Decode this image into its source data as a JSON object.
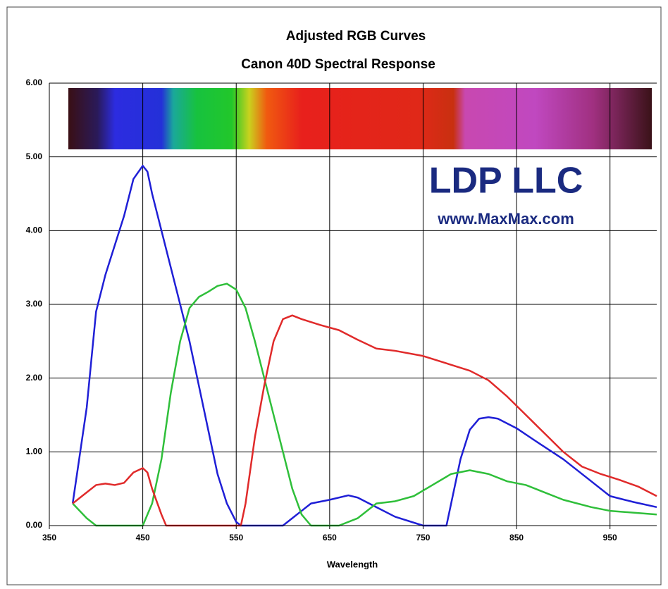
{
  "chart_data": {
    "type": "line",
    "title": "Adjusted RGB Curves",
    "subtitle": "Canon 40D Spectral Response",
    "x_label": "Wavelength",
    "annotations": [
      "LDP LLC",
      "www.MaxMax.com"
    ],
    "xlim": [
      350,
      1000
    ],
    "xticks": [
      350,
      450,
      550,
      650,
      750,
      850,
      950
    ],
    "ylim": [
      0,
      6
    ],
    "yticks": [
      {
        "value": 0,
        "label": "0.00"
      },
      {
        "value": 1,
        "label": "1.00"
      },
      {
        "value": 2,
        "label": "2.00"
      },
      {
        "value": 3,
        "label": "3.00"
      },
      {
        "value": 4,
        "label": "4.00"
      },
      {
        "value": 5,
        "label": "5.00"
      },
      {
        "value": 6,
        "label": "6.00"
      }
    ],
    "grid": true,
    "series": [
      {
        "color": "#1f1fd6",
        "x": [
          375,
          390,
          400,
          410,
          420,
          430,
          440,
          450,
          455,
          460,
          470,
          480,
          490,
          500,
          510,
          520,
          530,
          540,
          550,
          555,
          600,
          610,
          620,
          630,
          650,
          670,
          680,
          700,
          720,
          750,
          775,
          790,
          800,
          810,
          820,
          830,
          850,
          870,
          900,
          930,
          950,
          975,
          1000
        ],
        "values": [
          0.3,
          1.6,
          2.9,
          3.4,
          3.8,
          4.2,
          4.7,
          4.88,
          4.8,
          4.5,
          4.0,
          3.5,
          3.0,
          2.5,
          1.9,
          1.3,
          0.7,
          0.3,
          0.05,
          0,
          0,
          0.1,
          0.2,
          0.3,
          0.35,
          0.41,
          0.38,
          0.25,
          0.12,
          0,
          0,
          0.9,
          1.3,
          1.45,
          1.47,
          1.45,
          1.32,
          1.15,
          0.9,
          0.6,
          0.4,
          0.32,
          0.25
        ]
      },
      {
        "color": "#2fbf3a",
        "x": [
          375,
          390,
          400,
          450,
          460,
          470,
          480,
          490,
          500,
          510,
          520,
          530,
          540,
          550,
          560,
          570,
          580,
          590,
          600,
          610,
          620,
          630,
          660,
          680,
          700,
          720,
          740,
          760,
          780,
          800,
          820,
          840,
          860,
          880,
          900,
          930,
          950,
          1000
        ],
        "values": [
          0.3,
          0.1,
          0,
          0,
          0.3,
          0.9,
          1.8,
          2.5,
          2.95,
          3.1,
          3.17,
          3.25,
          3.28,
          3.2,
          2.95,
          2.5,
          2.0,
          1.5,
          1.0,
          0.5,
          0.15,
          0,
          0,
          0.1,
          0.3,
          0.33,
          0.4,
          0.55,
          0.7,
          0.75,
          0.7,
          0.6,
          0.55,
          0.45,
          0.35,
          0.25,
          0.2,
          0.15
        ]
      },
      {
        "color": "#e02a2a",
        "x": [
          375,
          390,
          400,
          410,
          420,
          430,
          440,
          450,
          455,
          460,
          470,
          475,
          555,
          560,
          570,
          580,
          590,
          600,
          610,
          620,
          640,
          660,
          680,
          700,
          720,
          750,
          780,
          800,
          820,
          840,
          860,
          880,
          900,
          920,
          940,
          960,
          980,
          1000
        ],
        "values": [
          0.3,
          0.45,
          0.55,
          0.57,
          0.55,
          0.58,
          0.72,
          0.78,
          0.72,
          0.5,
          0.15,
          0,
          0,
          0.3,
          1.2,
          1.9,
          2.5,
          2.8,
          2.85,
          2.8,
          2.72,
          2.65,
          2.52,
          2.4,
          2.37,
          2.3,
          2.18,
          2.1,
          1.97,
          1.75,
          1.5,
          1.25,
          1.0,
          0.8,
          0.7,
          0.62,
          0.53,
          0.4
        ]
      }
    ]
  }
}
